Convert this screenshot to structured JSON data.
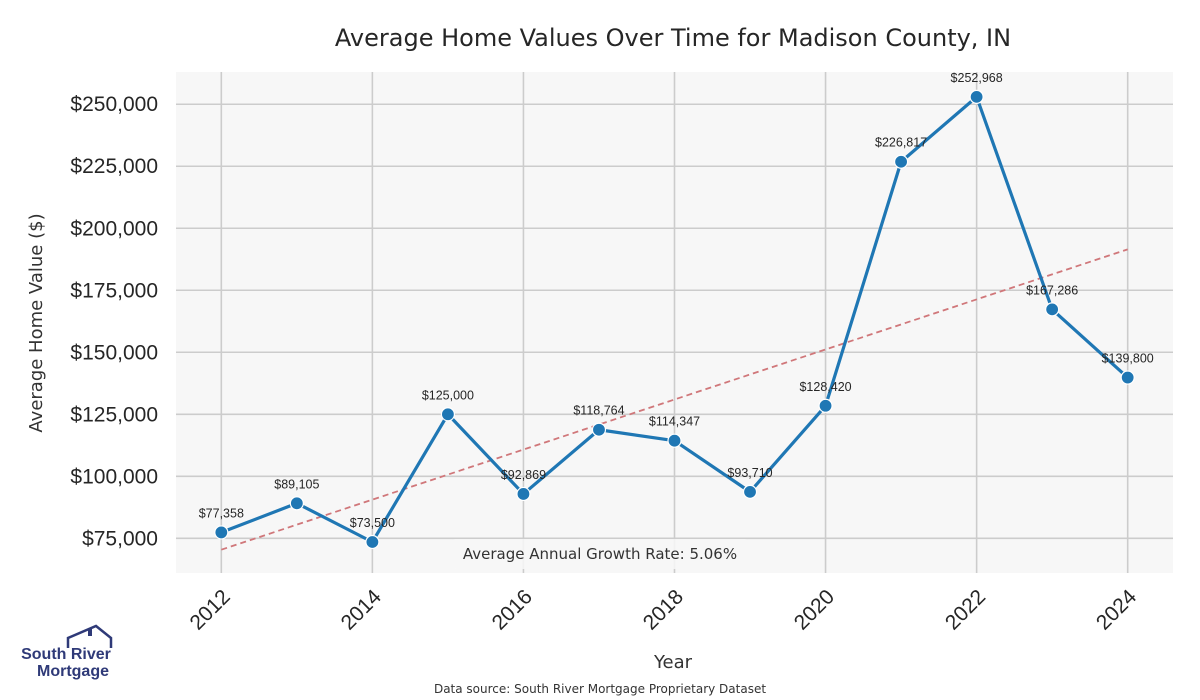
{
  "chart_data": {
    "type": "line",
    "title": "Average Home Values Over Time for Madison County, IN",
    "xlabel": "Year",
    "ylabel": "Average Home Value ($)",
    "x": [
      2012,
      2013,
      2014,
      2015,
      2016,
      2017,
      2018,
      2019,
      2020,
      2021,
      2022,
      2023,
      2024
    ],
    "series": [
      {
        "name": "Average Home Value",
        "values": [
          77358,
          89105,
          73500,
          125000,
          92869,
          118764,
          114347,
          93710,
          128420,
          226817,
          252968,
          167286,
          139800
        ],
        "labels": [
          "$77,358",
          "$89,105",
          "$73,500",
          "$125,000",
          "$92,869",
          "$118,764",
          "$114,347",
          "$93,710",
          "$128,420",
          "$226,817",
          "$252,968",
          "$167,286",
          "$139,800"
        ],
        "color": "#1f77b4"
      }
    ],
    "trend": {
      "start": [
        2012,
        70400
      ],
      "end": [
        2024,
        191500
      ],
      "color": "#d0777a",
      "style": "dashed"
    },
    "xticks": [
      2012,
      2014,
      2016,
      2018,
      2020,
      2022,
      2024
    ],
    "yticks": [
      75000,
      100000,
      125000,
      150000,
      175000,
      200000,
      225000,
      250000
    ],
    "ytick_labels": [
      "$75,000",
      "$100,000",
      "$125,000",
      "$150,000",
      "$175,000",
      "$200,000",
      "$225,000",
      "$250,000"
    ],
    "xlim": [
      2011.4,
      2024.6
    ],
    "ylim": [
      61000,
      263000
    ],
    "grid": true,
    "annotation": "Average Annual Growth Rate: 5.06%"
  },
  "footer": {
    "source": "Data source: South River Mortgage Proprietary Dataset",
    "logo_line1": "South River",
    "logo_line2": "Mortgage"
  },
  "colors": {
    "background": "#f7f7f7",
    "grid": "#cccccc",
    "brand": "#2f3a78"
  }
}
